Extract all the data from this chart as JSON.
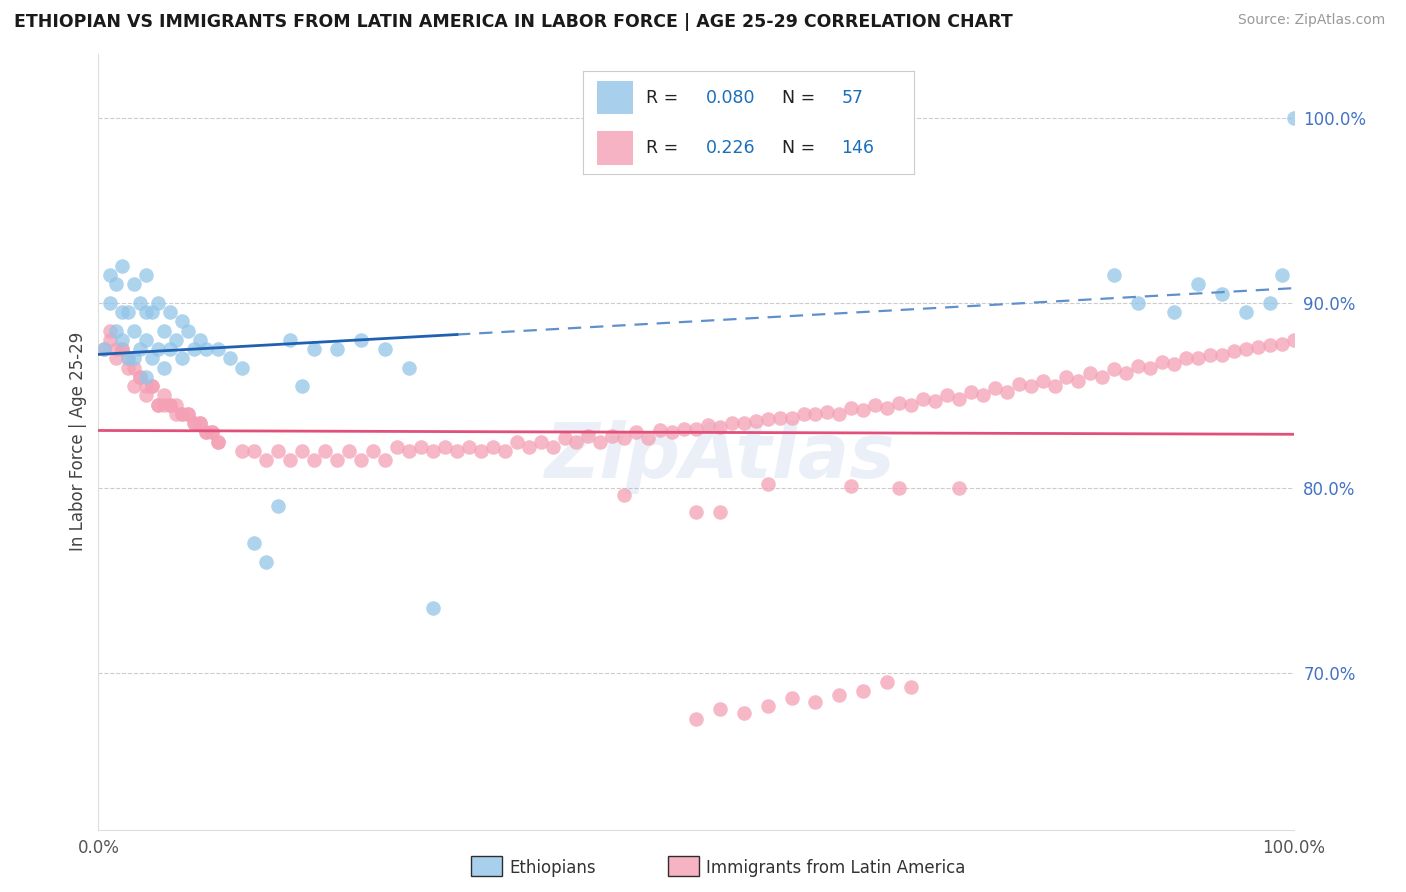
{
  "title": "ETHIOPIAN VS IMMIGRANTS FROM LATIN AMERICA IN LABOR FORCE | AGE 25-29 CORRELATION CHART",
  "source": "Source: ZipAtlas.com",
  "ylabel": "In Labor Force | Age 25-29",
  "xlim": [
    0.0,
    1.0
  ],
  "ylim": [
    0.615,
    1.035
  ],
  "yticks_right": [
    0.7,
    0.8,
    0.9,
    1.0
  ],
  "ytick_labels_right": [
    "70.0%",
    "80.0%",
    "90.0%",
    "100.0%"
  ],
  "blue_color": "#92C5E8",
  "pink_color": "#F4A0B5",
  "trend_blue_solid": "#2060B0",
  "trend_blue_dash": "#6090CC",
  "trend_pink": "#E0507A",
  "legend_r1": "0.080",
  "legend_n1": "57",
  "legend_r2": "0.226",
  "legend_n2": "146",
  "eth_x": [
    0.005,
    0.01,
    0.01,
    0.015,
    0.015,
    0.02,
    0.02,
    0.02,
    0.025,
    0.025,
    0.03,
    0.03,
    0.03,
    0.035,
    0.035,
    0.04,
    0.04,
    0.04,
    0.04,
    0.045,
    0.045,
    0.05,
    0.05,
    0.055,
    0.055,
    0.06,
    0.06,
    0.065,
    0.07,
    0.07,
    0.075,
    0.08,
    0.085,
    0.09,
    0.1,
    0.11,
    0.12,
    0.13,
    0.14,
    0.15,
    0.16,
    0.17,
    0.18,
    0.2,
    0.22,
    0.24,
    0.26,
    0.28,
    0.85,
    0.87,
    0.9,
    0.92,
    0.94,
    0.96,
    0.98,
    0.99,
    1.0
  ],
  "eth_y": [
    0.875,
    0.9,
    0.915,
    0.885,
    0.91,
    0.88,
    0.895,
    0.92,
    0.87,
    0.895,
    0.87,
    0.885,
    0.91,
    0.875,
    0.9,
    0.86,
    0.88,
    0.895,
    0.915,
    0.87,
    0.895,
    0.875,
    0.9,
    0.865,
    0.885,
    0.875,
    0.895,
    0.88,
    0.87,
    0.89,
    0.885,
    0.875,
    0.88,
    0.875,
    0.875,
    0.87,
    0.865,
    0.77,
    0.76,
    0.79,
    0.88,
    0.855,
    0.875,
    0.875,
    0.88,
    0.875,
    0.865,
    0.735,
    0.915,
    0.9,
    0.895,
    0.91,
    0.905,
    0.895,
    0.9,
    0.915,
    1.0
  ],
  "lat_x": [
    0.005,
    0.01,
    0.015,
    0.02,
    0.025,
    0.03,
    0.035,
    0.04,
    0.045,
    0.05,
    0.055,
    0.06,
    0.065,
    0.07,
    0.075,
    0.08,
    0.085,
    0.09,
    0.095,
    0.1,
    0.01,
    0.02,
    0.03,
    0.04,
    0.05,
    0.06,
    0.07,
    0.08,
    0.09,
    0.1,
    0.015,
    0.025,
    0.035,
    0.045,
    0.055,
    0.065,
    0.075,
    0.085,
    0.095,
    0.12,
    0.14,
    0.16,
    0.18,
    0.2,
    0.22,
    0.24,
    0.26,
    0.28,
    0.3,
    0.32,
    0.34,
    0.36,
    0.38,
    0.4,
    0.42,
    0.44,
    0.46,
    0.48,
    0.5,
    0.52,
    0.54,
    0.56,
    0.58,
    0.6,
    0.62,
    0.64,
    0.66,
    0.68,
    0.7,
    0.72,
    0.74,
    0.76,
    0.78,
    0.8,
    0.82,
    0.84,
    0.86,
    0.88,
    0.9,
    0.92,
    0.94,
    0.96,
    0.98,
    1.0,
    0.13,
    0.15,
    0.17,
    0.19,
    0.21,
    0.23,
    0.25,
    0.27,
    0.29,
    0.31,
    0.33,
    0.35,
    0.37,
    0.39,
    0.41,
    0.43,
    0.45,
    0.47,
    0.49,
    0.51,
    0.53,
    0.55,
    0.57,
    0.59,
    0.61,
    0.63,
    0.65,
    0.67,
    0.69,
    0.71,
    0.73,
    0.75,
    0.77,
    0.79,
    0.81,
    0.83,
    0.85,
    0.87,
    0.89,
    0.91,
    0.93,
    0.95,
    0.97,
    0.99,
    0.44,
    0.5,
    0.52,
    0.56,
    0.63,
    0.67,
    0.72,
    0.5,
    0.52,
    0.54,
    0.56,
    0.6,
    0.58,
    0.62,
    0.64,
    0.68,
    0.66
  ],
  "lat_y": [
    0.875,
    0.885,
    0.87,
    0.875,
    0.865,
    0.855,
    0.86,
    0.85,
    0.855,
    0.845,
    0.85,
    0.845,
    0.845,
    0.84,
    0.84,
    0.835,
    0.835,
    0.83,
    0.83,
    0.825,
    0.88,
    0.875,
    0.865,
    0.855,
    0.845,
    0.845,
    0.84,
    0.835,
    0.83,
    0.825,
    0.875,
    0.87,
    0.86,
    0.855,
    0.845,
    0.84,
    0.84,
    0.835,
    0.83,
    0.82,
    0.815,
    0.815,
    0.815,
    0.815,
    0.815,
    0.815,
    0.82,
    0.82,
    0.82,
    0.82,
    0.82,
    0.822,
    0.822,
    0.825,
    0.825,
    0.827,
    0.827,
    0.83,
    0.832,
    0.833,
    0.835,
    0.837,
    0.838,
    0.84,
    0.84,
    0.842,
    0.843,
    0.845,
    0.847,
    0.848,
    0.85,
    0.852,
    0.855,
    0.855,
    0.858,
    0.86,
    0.862,
    0.865,
    0.867,
    0.87,
    0.872,
    0.875,
    0.877,
    0.88,
    0.82,
    0.82,
    0.82,
    0.82,
    0.82,
    0.82,
    0.822,
    0.822,
    0.822,
    0.822,
    0.822,
    0.825,
    0.825,
    0.827,
    0.828,
    0.828,
    0.83,
    0.831,
    0.832,
    0.834,
    0.835,
    0.836,
    0.838,
    0.84,
    0.841,
    0.843,
    0.845,
    0.846,
    0.848,
    0.85,
    0.852,
    0.854,
    0.856,
    0.858,
    0.86,
    0.862,
    0.864,
    0.866,
    0.868,
    0.87,
    0.872,
    0.874,
    0.876,
    0.878,
    0.796,
    0.787,
    0.787,
    0.802,
    0.801,
    0.8,
    0.8,
    0.675,
    0.68,
    0.678,
    0.682,
    0.684,
    0.686,
    0.688,
    0.69,
    0.692,
    0.695
  ]
}
